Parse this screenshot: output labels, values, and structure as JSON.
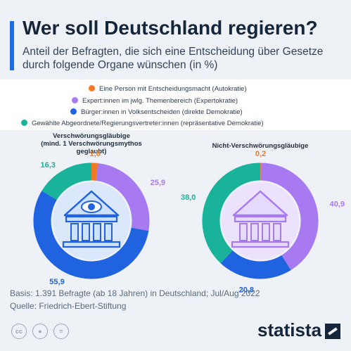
{
  "header": {
    "title": "Wer soll Deutschland regieren?",
    "subtitle": "Anteil der Befragten, die sich eine Entscheidung über Gesetze durch folgende Organe wünschen (in %)"
  },
  "legend": [
    {
      "label": "Eine Person mit Entscheidungsmacht (Autokratie)",
      "color": "#f07a26"
    },
    {
      "label": "Expert:innen im jwlg. Themenbereich (Expertokratie)",
      "color": "#a87af2"
    },
    {
      "label": "Bürger:innen in Volksentscheiden (direkte Demokratie)",
      "color": "#1f63e0"
    },
    {
      "label": "Gewählte Abgeordnete/Regierungsvertreter:innen (repräsentative Demokratie)",
      "color": "#19b39b"
    }
  ],
  "chart_data": [
    {
      "type": "pie",
      "title": "Verschwörungsgläubige (mind. 1 Verschwörungsmythos geglaubt)",
      "title_lines": [
        "Verschwörungsgläubige",
        "(mind. 1 Verschwörungsmythos",
        "geglaubt)"
      ],
      "categories": [
        "Autokratie",
        "Expertokratie",
        "direkte Demokratie",
        "repräsentative Demokratie"
      ],
      "values": [
        1.8,
        25.9,
        55.9,
        16.3
      ],
      "labels": [
        "1,8",
        "25,9",
        "55,9",
        "16,3"
      ],
      "colors": [
        "#f07a26",
        "#a87af2",
        "#1f63e0",
        "#19b39b"
      ],
      "icon_color": "#1f63e0"
    },
    {
      "type": "pie",
      "title": "Nicht-Verschwörungsgläubige",
      "title_lines": [
        "Nicht-Verschwörungsgläubige"
      ],
      "categories": [
        "Autokratie",
        "Expertokratie",
        "direkte Demokratie",
        "repräsentative Demokratie"
      ],
      "values": [
        0.2,
        40.9,
        20.8,
        38.0
      ],
      "labels": [
        "0,2",
        "40,9",
        "20,8",
        "38,0"
      ],
      "colors": [
        "#f07a26",
        "#a87af2",
        "#1f63e0",
        "#19b39b"
      ],
      "icon_color": "#a87af2"
    }
  ],
  "footer": {
    "basis": "Basis: 1.391 Befragte (ab 18 Jahren) in Deutschland; Jul/Aug 2022",
    "source": "Quelle: Friedrich-Ebert-Stiftung",
    "license_icons": [
      "cc-icon",
      "person-icon",
      "equals-icon"
    ],
    "brand": "statista"
  }
}
